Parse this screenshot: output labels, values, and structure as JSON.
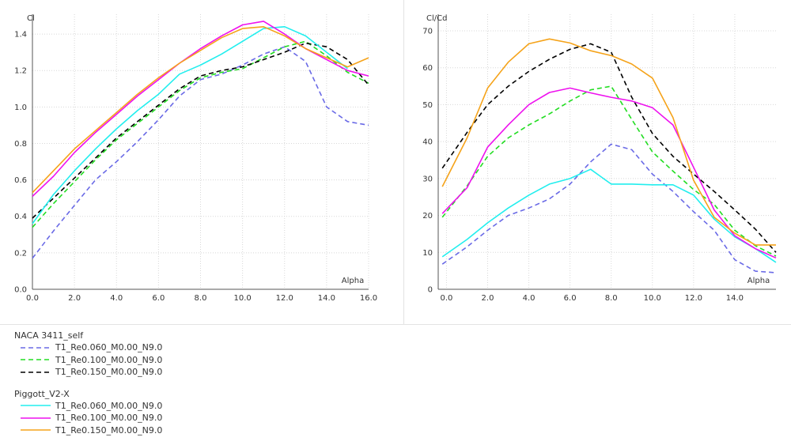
{
  "legend": {
    "groups": [
      {
        "title": "NACA 3411_self",
        "entries": [
          {
            "label": "T1_Re0.060_M0.00_N9.0",
            "color": "#6a6ae6",
            "dash": "dash"
          },
          {
            "label": "T1_Re0.100_M0.00_N9.0",
            "color": "#22dd22",
            "dash": "dash"
          },
          {
            "label": "T1_Re0.150_M0.00_N9.0",
            "color": "#000000",
            "dash": "dash"
          }
        ]
      },
      {
        "title": "Piggott_V2-X",
        "entries": [
          {
            "label": "T1_Re0.060_M0.00_N9.0",
            "color": "#22eeee",
            "dash": "solid"
          },
          {
            "label": "T1_Re0.100_M0.00_N9.0",
            "color": "#ee11ee",
            "dash": "solid"
          },
          {
            "label": "T1_Re0.150_M0.00_N9.0",
            "color": "#f5a31a",
            "dash": "solid"
          }
        ]
      }
    ]
  },
  "chart_data": [
    {
      "type": "line",
      "ylabel": "Cl",
      "xlabel": "Alpha",
      "xlim": [
        0,
        16
      ],
      "ylim": [
        0,
        1.5
      ],
      "xticks": [
        "0.0",
        "2.0",
        "4.0",
        "6.0",
        "8.0",
        "10.0",
        "12.0",
        "14.0",
        "16.0"
      ],
      "yticks": [
        "0.0",
        "0.2",
        "0.4",
        "0.6",
        "0.8",
        "1.0",
        "1.2",
        "1.4"
      ],
      "grid": true,
      "series": [
        {
          "name": "T1_Re0.060_M0.00_N9.0",
          "color": "#6a6ae6",
          "dash": "dash",
          "x": [
            0,
            1,
            2,
            3,
            4,
            5,
            6,
            7,
            8,
            9,
            10,
            11,
            12,
            13,
            14,
            15,
            16
          ],
          "y": [
            0.17,
            0.32,
            0.46,
            0.6,
            0.7,
            0.81,
            0.93,
            1.06,
            1.15,
            1.18,
            1.23,
            1.29,
            1.33,
            1.25,
            1.0,
            0.92,
            0.9
          ]
        },
        {
          "name": "T1_Re0.100_M0.00_N9.0",
          "color": "#22dd22",
          "dash": "dash",
          "x": [
            0,
            1,
            2,
            3,
            4,
            5,
            6,
            7,
            8,
            9,
            10,
            11,
            12,
            13,
            14,
            15,
            16
          ],
          "y": [
            0.34,
            0.47,
            0.59,
            0.71,
            0.82,
            0.91,
            1.0,
            1.09,
            1.16,
            1.19,
            1.21,
            1.27,
            1.33,
            1.36,
            1.28,
            1.19,
            1.13
          ]
        },
        {
          "name": "T1_Re0.150_M0.00_N9.0",
          "color": "#000000",
          "dash": "dash",
          "x": [
            0,
            1,
            2,
            3,
            4,
            5,
            6,
            7,
            8,
            9,
            10,
            11,
            12,
            13,
            14,
            15,
            16
          ],
          "y": [
            0.39,
            0.5,
            0.61,
            0.72,
            0.83,
            0.92,
            1.01,
            1.1,
            1.17,
            1.2,
            1.22,
            1.26,
            1.3,
            1.35,
            1.33,
            1.26,
            1.12
          ]
        },
        {
          "name": "T1_Re0.060_M0.00_N9.0",
          "color": "#22eeee",
          "dash": "solid",
          "x": [
            0,
            1,
            2,
            3,
            4,
            5,
            6,
            7,
            8,
            9,
            10,
            11,
            12,
            13,
            14,
            15
          ],
          "y": [
            0.36,
            0.52,
            0.65,
            0.77,
            0.88,
            0.98,
            1.07,
            1.18,
            1.23,
            1.29,
            1.36,
            1.43,
            1.44,
            1.39,
            1.3,
            1.21
          ]
        },
        {
          "name": "T1_Re0.100_M0.00_N9.0",
          "color": "#ee11ee",
          "dash": "solid",
          "x": [
            0,
            1,
            2,
            3,
            4,
            5,
            6,
            7,
            8,
            9,
            10,
            11,
            12,
            13,
            14,
            15,
            16
          ],
          "y": [
            0.51,
            0.62,
            0.75,
            0.86,
            0.96,
            1.06,
            1.15,
            1.24,
            1.32,
            1.39,
            1.45,
            1.47,
            1.4,
            1.32,
            1.26,
            1.2,
            1.17
          ]
        },
        {
          "name": "T1_Re0.150_M0.00_N9.0",
          "color": "#f5a31a",
          "dash": "solid",
          "x": [
            0,
            1,
            2,
            3,
            4,
            5,
            6,
            7,
            8,
            9,
            10,
            11,
            12,
            13,
            14,
            15,
            16
          ],
          "y": [
            0.53,
            0.65,
            0.77,
            0.87,
            0.97,
            1.07,
            1.16,
            1.24,
            1.31,
            1.38,
            1.43,
            1.44,
            1.39,
            1.32,
            1.27,
            1.22,
            1.27
          ]
        }
      ]
    },
    {
      "type": "line",
      "ylabel": "Cl/Cd",
      "xlabel": "Alpha",
      "xlim": [
        -0.4,
        16
      ],
      "ylim": [
        0,
        70
      ],
      "xticks": [
        "0.0",
        "2.0",
        "4.0",
        "6.0",
        "8.0",
        "10.0",
        "12.0",
        "14.0"
      ],
      "yticks": [
        "0",
        "10",
        "20",
        "30",
        "40",
        "50",
        "60",
        "70"
      ],
      "grid": true,
      "series": [
        {
          "name": "T1_Re0.060_M0.00_N9.0",
          "color": "#6a6ae6",
          "dash": "dash",
          "x": [
            -0.2,
            1,
            2,
            3,
            4,
            5,
            6,
            7,
            8,
            9,
            10,
            11,
            12,
            13,
            14,
            15,
            16
          ],
          "y": [
            6.8,
            11.5,
            16,
            20,
            22,
            24.5,
            28.5,
            34.5,
            39.3,
            37.8,
            31.2,
            26.5,
            21,
            16,
            8,
            4.9,
            4.5
          ]
        },
        {
          "name": "T1_Re0.100_M0.00_N9.0",
          "color": "#22dd22",
          "dash": "dash",
          "x": [
            -0.2,
            1,
            2,
            3,
            4,
            5,
            6,
            7,
            8,
            9,
            10,
            11,
            12,
            13,
            14,
            15,
            16
          ],
          "y": [
            19.5,
            28,
            36,
            41,
            44.5,
            47.5,
            51,
            54,
            55,
            46,
            37.2,
            32,
            27,
            23,
            16,
            11.8,
            9
          ]
        },
        {
          "name": "T1_Re0.150_M0.00_N9.0",
          "color": "#000000",
          "dash": "dash",
          "x": [
            -0.2,
            1,
            2,
            3,
            4,
            5,
            6,
            7,
            8,
            9,
            10,
            11,
            12,
            13,
            14,
            15,
            16
          ],
          "y": [
            32.8,
            42.5,
            50,
            55,
            59,
            62.3,
            65,
            66.5,
            64.2,
            52,
            42.2,
            36,
            31.2,
            26.5,
            21.5,
            16.3,
            10
          ]
        },
        {
          "name": "T1_Re0.060_M0.00_N9.0",
          "color": "#22eeee",
          "dash": "solid",
          "x": [
            -0.2,
            1,
            2,
            3,
            4,
            5,
            6,
            7,
            8,
            9,
            10,
            11,
            12,
            13,
            14,
            15,
            16
          ],
          "y": [
            8.8,
            13.5,
            18,
            22,
            25.5,
            28.5,
            30,
            32.5,
            28.5,
            28.5,
            28.3,
            28.3,
            25.5,
            19,
            14.2,
            11,
            7.3
          ]
        },
        {
          "name": "T1_Re0.100_M0.00_N9.0",
          "color": "#ee11ee",
          "dash": "solid",
          "x": [
            -0.2,
            1,
            2,
            3,
            4,
            5,
            6,
            7,
            8,
            9,
            10,
            11,
            12,
            13,
            14,
            15,
            16
          ],
          "y": [
            20.5,
            27.5,
            38.5,
            44.5,
            50,
            53.3,
            54.5,
            53.2,
            52,
            51,
            49.2,
            44.5,
            33,
            21.5,
            14.5,
            11,
            8.5
          ]
        },
        {
          "name": "T1_Re0.150_M0.00_N9.0",
          "color": "#f5a31a",
          "dash": "solid",
          "x": [
            -0.2,
            1,
            2,
            3,
            4,
            5,
            6,
            7,
            8,
            9,
            10,
            11,
            12,
            13,
            14,
            15,
            16
          ],
          "y": [
            27.8,
            41,
            54.5,
            61.5,
            66.5,
            67.8,
            66.7,
            64.6,
            63.3,
            61,
            57.2,
            46.5,
            29.5,
            19.5,
            15.2,
            12,
            12
          ]
        }
      ]
    }
  ]
}
